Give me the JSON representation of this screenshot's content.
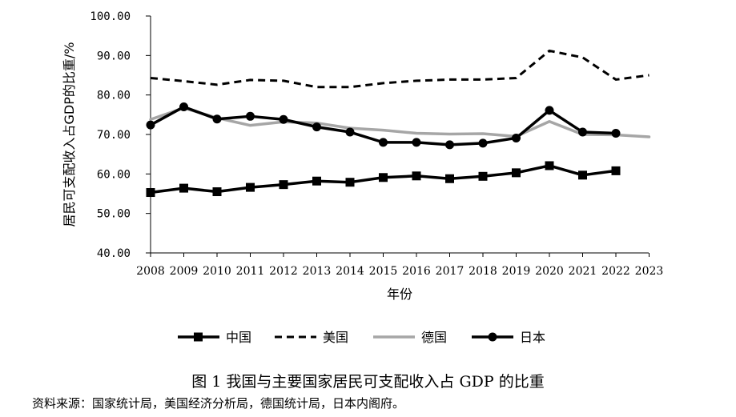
{
  "chart_data": {
    "type": "line",
    "categories": [
      "2008",
      "2009",
      "2010",
      "2011",
      "2012",
      "2013",
      "2014",
      "2015",
      "2016",
      "2017",
      "2018",
      "2019",
      "2020",
      "2021",
      "2022",
      "2023"
    ],
    "ylabel": "居民可支配收入占GDP的比重/%",
    "xlabel": "年份",
    "ylim": [
      40,
      100
    ],
    "yticks": [
      "40.00",
      "50.00",
      "60.00",
      "70.00",
      "80.00",
      "90.00",
      "100.00"
    ],
    "grid": false,
    "legend_position": "bottom",
    "series": [
      {
        "name": "中国",
        "style": "solid-square",
        "color": "#000000",
        "values": [
          55.3,
          56.4,
          55.5,
          56.6,
          57.3,
          58.2,
          57.9,
          59.1,
          59.5,
          58.8,
          59.4,
          60.3,
          62.1,
          59.7,
          60.8,
          null
        ]
      },
      {
        "name": "美国",
        "style": "dashed",
        "color": "#000000",
        "values": [
          84.3,
          83.5,
          82.6,
          83.8,
          83.6,
          82.0,
          82.0,
          83.0,
          83.6,
          83.9,
          83.9,
          84.3,
          91.2,
          89.5,
          83.9,
          85.0
        ]
      },
      {
        "name": "德国",
        "style": "solid-gray",
        "color": "#a6a6a6",
        "values": [
          73.8,
          76.7,
          74.2,
          72.3,
          73.2,
          72.9,
          71.6,
          71.1,
          70.3,
          70.1,
          70.2,
          69.5,
          73.3,
          70.0,
          69.9,
          69.4
        ]
      },
      {
        "name": "日本",
        "style": "solid-circle",
        "color": "#000000",
        "values": [
          72.4,
          77.0,
          73.9,
          74.6,
          73.8,
          71.9,
          70.6,
          68.0,
          68.0,
          67.4,
          67.8,
          69.1,
          76.1,
          70.6,
          70.3,
          null
        ]
      }
    ]
  },
  "caption": "图 1  我国与主要国家居民可支配收入占 GDP 的比重",
  "source": "资料来源：国家统计局，美国经济分析局，德国统计局，日本内阁府。"
}
